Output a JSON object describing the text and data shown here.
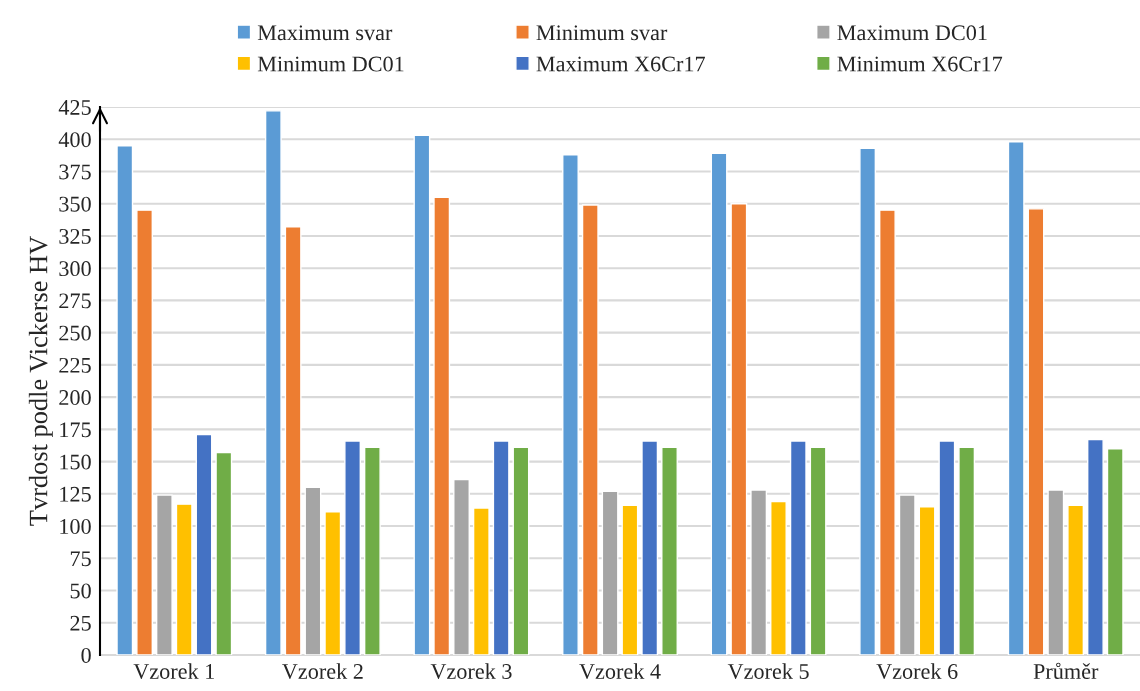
{
  "chart_data": {
    "type": "bar",
    "ylabel": "Tvrdost podle Vickerse HV",
    "categories": [
      "Vzorek 1",
      "Vzorek 2",
      "Vzorek 3",
      "Vzorek 4",
      "Vzorek 5",
      "Vzorek 6",
      "Průměr"
    ],
    "series": [
      {
        "name": "Maximum svar",
        "color": "#5b9bd5",
        "values": [
          395,
          422,
          403,
          388,
          389,
          393,
          398
        ]
      },
      {
        "name": "Minimum svar",
        "color": "#ed7d31",
        "values": [
          345,
          332,
          355,
          349,
          350,
          345,
          346
        ]
      },
      {
        "name": "Maximum DC01",
        "color": "#a5a5a5",
        "values": [
          124,
          130,
          136,
          127,
          128,
          124,
          128
        ]
      },
      {
        "name": "Minimum DC01",
        "color": "#ffc000",
        "values": [
          117,
          111,
          114,
          116,
          119,
          115,
          116
        ]
      },
      {
        "name": "Maximum X6Cr17",
        "color": "#4472c4",
        "values": [
          171,
          166,
          166,
          166,
          166,
          166,
          167
        ]
      },
      {
        "name": "Minimum X6Cr17",
        "color": "#70ad47",
        "values": [
          157,
          161,
          161,
          161,
          161,
          161,
          160
        ]
      }
    ],
    "ylim": [
      0,
      425
    ],
    "yticks": [
      0,
      25,
      50,
      75,
      100,
      125,
      150,
      175,
      200,
      225,
      250,
      275,
      300,
      325,
      350,
      375,
      400,
      425
    ],
    "grid": "y",
    "legend": "top"
  }
}
